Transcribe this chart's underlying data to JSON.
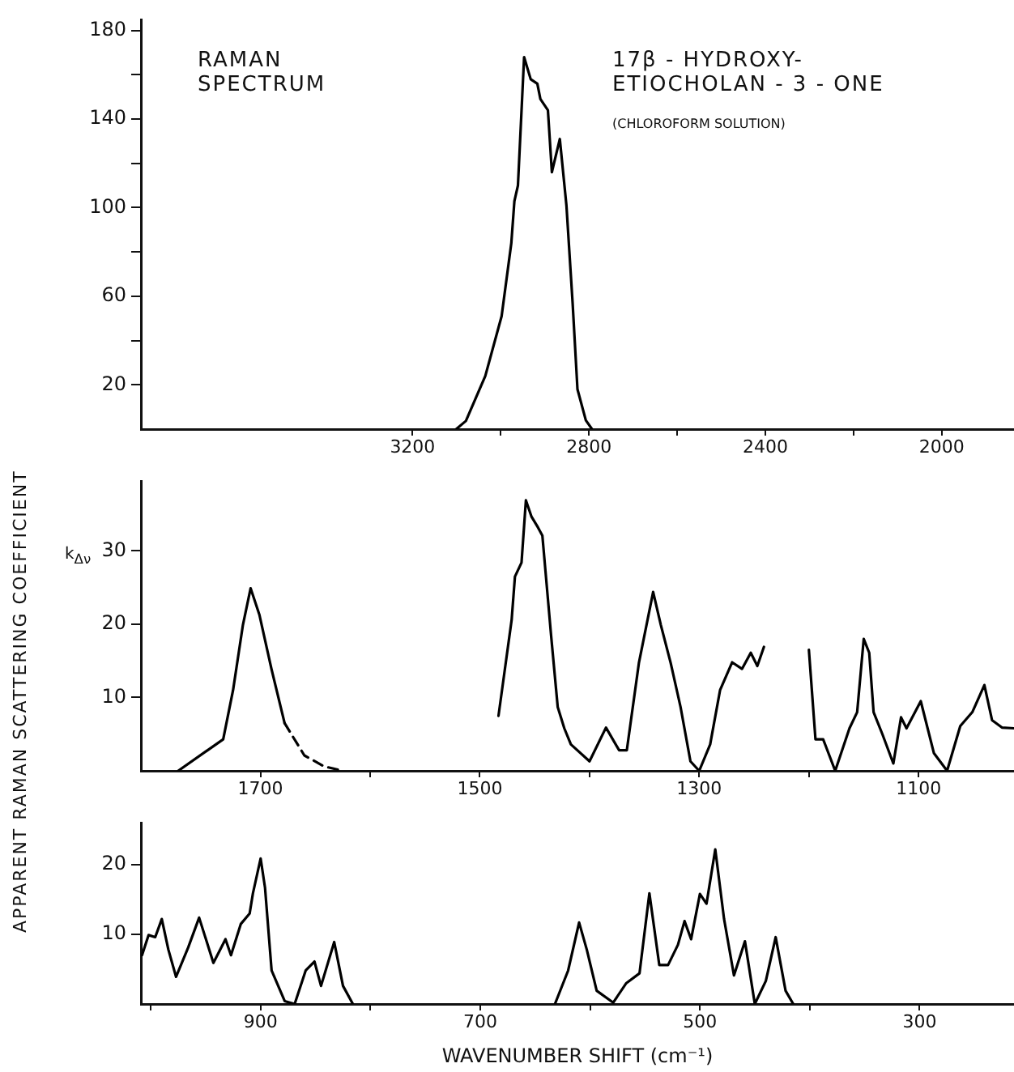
{
  "chart_data": [
    {
      "type": "line",
      "title": "RAMAN SPECTRUM",
      "subtitle": "17β - HYDROXY- ETIOCHOLAN - 3 - ONE",
      "annotations": [
        "(CHLOROFORM SOLUTION)"
      ],
      "marker": "none",
      "xlim": [
        3816,
        1836
      ],
      "ylim": [
        0,
        185
      ],
      "xticks": [
        3200,
        {
          "value": 3000,
          "label": null
        },
        2800,
        {
          "value": 2600,
          "label": null
        },
        2400,
        {
          "value": 2200,
          "label": null
        },
        2000
      ],
      "yticks": [
        20,
        {
          "value": 40,
          "label": null
        },
        60,
        {
          "value": 80,
          "label": null
        },
        100,
        {
          "value": 120,
          "label": null
        },
        140,
        {
          "value": 160,
          "label": null
        },
        180
      ],
      "series": [
        {
          "color": "#000000",
          "x": [
            3101,
            3079,
            3035,
            2998,
            2976,
            2969,
            2961,
            2947,
            2932,
            2917,
            2910,
            2893,
            2884,
            2866,
            2851,
            2837,
            2826,
            2807,
            2793
          ],
          "values": [
            0,
            3.7,
            24,
            51,
            84,
            103,
            110,
            168,
            158,
            156,
            149,
            144,
            116,
            131,
            101,
            57,
            18,
            4,
            0
          ]
        }
      ]
    },
    {
      "type": "line",
      "ylabel": "APPARENT RAMAN SCATTERING COEFFICIENT",
      "annotations": [
        "k$_{Δν}$"
      ],
      "marker": "none",
      "xlim": [
        1809,
        1013
      ],
      "ylim": [
        0,
        39.5
      ],
      "xticks": [
        1700,
        {
          "value": 1600,
          "label": null
        },
        1500,
        {
          "value": 1400,
          "label": null
        },
        1300,
        {
          "value": 1200,
          "label": null
        },
        1100
      ],
      "yticks": [
        10,
        20,
        30
      ],
      "series": [
        {
          "color": "#000000",
          "line_style": "solid",
          "x": [
            1775,
            1734,
            1725,
            1716,
            1709,
            1701,
            1690,
            1678,
            1600,
            1483,
            1471,
            1468,
            1462,
            1458,
            1453,
            1447,
            1443,
            1435,
            1429,
            1423,
            1417,
            1400,
            1385,
            1373,
            1366,
            1355,
            1342,
            1335,
            1326,
            1317,
            1308,
            1300,
            1290,
            1281,
            1270,
            1261,
            1253,
            1247,
            1241,
            1220,
            1200,
            1194,
            1187,
            1176,
            1163,
            1156,
            1150,
            1145,
            1141,
            1133,
            1123,
            1116,
            1111,
            1098,
            1086,
            1074,
            1062,
            1051,
            1040,
            1033,
            1024,
            1013
          ],
          "values": [
            0,
            4.3,
            11,
            19.9,
            24.9,
            21.3,
            13.9,
            6.5,
            null,
            7.5,
            20.6,
            26.5,
            28.4,
            36.9,
            34.7,
            33.2,
            32.1,
            18.4,
            8.7,
            5.8,
            3.6,
            1.3,
            5.9,
            2.8,
            2.8,
            14.7,
            24.4,
            19.9,
            14.7,
            8.7,
            1.3,
            0,
            3.6,
            11,
            14.8,
            13.9,
            16.1,
            14.3,
            16.9,
            null,
            16.5,
            4.3,
            4.3,
            0,
            5.8,
            8,
            18,
            16.1,
            8,
            5,
            1,
            7.3,
            5.8,
            9.5,
            2.4,
            0,
            6.1,
            8,
            11.7,
            6.9,
            5.9,
            5.8
          ]
        },
        {
          "color": "#000000",
          "line_style": "dashed",
          "x": [
            1678,
            1660,
            1642,
            1625
          ],
          "values": [
            6.5,
            2.1,
            0.6,
            0
          ]
        }
      ]
    },
    {
      "type": "line",
      "xlabel": "WAVENUMBER SHIFT (cm⁻¹)",
      "marker": "none",
      "xlim": [
        1009,
        214
      ],
      "ylim": [
        0,
        26
      ],
      "xticks": [
        {
          "value": 1000,
          "label": null
        },
        900,
        {
          "value": 800,
          "label": null
        },
        700,
        {
          "value": 600,
          "label": null
        },
        500,
        {
          "value": 400,
          "label": null
        },
        300
      ],
      "yticks": [
        10,
        20
      ],
      "series": [
        {
          "color": "#000000",
          "x": [
            1008,
            1002,
            996,
            990,
            984,
            977,
            966,
            956,
            943,
            932,
            927,
            918,
            910,
            907,
            900,
            896,
            890,
            878,
            869,
            859,
            851,
            845,
            833,
            825,
            816,
            720,
            632,
            620,
            610,
            603,
            594,
            579,
            567,
            555,
            546,
            537,
            529,
            520,
            514,
            508,
            500,
            494,
            486,
            478,
            469,
            459,
            450,
            440,
            431,
            422,
            415
          ],
          "values": [
            7,
            9.9,
            9.6,
            12.2,
            7.8,
            3.9,
            8.1,
            12.4,
            5.9,
            9.3,
            7,
            11.5,
            13,
            15.9,
            20.9,
            16.7,
            4.8,
            0.4,
            0,
            4.8,
            6.1,
            2.6,
            8.9,
            2.6,
            0,
            null,
            0,
            4.8,
            11.7,
            7.8,
            1.9,
            0.2,
            3,
            4.4,
            15.9,
            5.6,
            5.6,
            8.5,
            11.9,
            9.3,
            15.8,
            14.4,
            22.2,
            12.2,
            4.1,
            9,
            0,
            3.3,
            9.6,
            1.9,
            0
          ]
        }
      ]
    }
  ]
}
